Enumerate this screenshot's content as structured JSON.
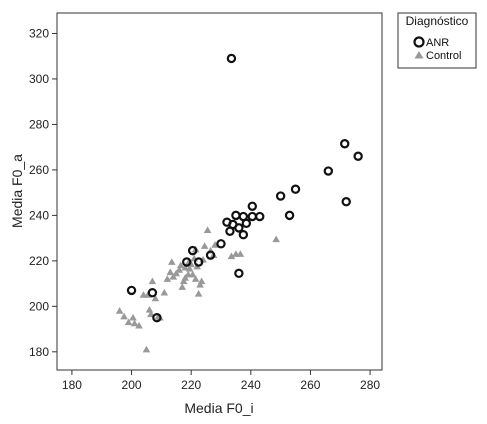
{
  "chart_data": {
    "type": "scatter",
    "xlabel": "Media F0_i",
    "ylabel": "Media F0_a",
    "xlim": [
      175,
      284
    ],
    "ylim": [
      172,
      329
    ],
    "xticks": [
      180,
      200,
      220,
      240,
      260,
      280
    ],
    "yticks": [
      180,
      200,
      220,
      240,
      260,
      280,
      300,
      320
    ],
    "grid": false,
    "legend": {
      "title": "Diagnóstico",
      "placement": "top-right outside",
      "entries": [
        {
          "label": "ANR",
          "marker": "circle"
        },
        {
          "label": "Control",
          "marker": "triangle"
        }
      ]
    },
    "series": [
      {
        "name": "ANR",
        "marker": "circle",
        "color": "#111111",
        "points": [
          [
            200,
            207
          ],
          [
            207,
            206
          ],
          [
            208.5,
            195
          ],
          [
            218.5,
            219.5
          ],
          [
            220.5,
            224.5
          ],
          [
            222.5,
            219.5
          ],
          [
            226.5,
            222.5
          ],
          [
            230,
            227.5
          ],
          [
            232,
            237
          ],
          [
            233,
            233
          ],
          [
            234,
            236
          ],
          [
            235,
            240
          ],
          [
            236,
            234.5
          ],
          [
            236,
            214.5
          ],
          [
            237.5,
            231.5
          ],
          [
            237.5,
            239.5
          ],
          [
            238.5,
            236.5
          ],
          [
            240.5,
            244
          ],
          [
            240.5,
            239.5
          ],
          [
            243,
            239.5
          ],
          [
            250,
            248.5
          ],
          [
            253,
            240
          ],
          [
            255,
            251.5
          ],
          [
            266,
            259.5
          ],
          [
            271.5,
            271.5
          ],
          [
            272,
            246
          ],
          [
            276,
            266
          ],
          [
            233.5,
            309
          ]
        ]
      },
      {
        "name": "Control",
        "marker": "triangle",
        "color": "#999999",
        "points": [
          [
            196,
            198
          ],
          [
            197.5,
            195.5
          ],
          [
            199,
            193
          ],
          [
            201,
            192.5
          ],
          [
            202.5,
            191.5
          ],
          [
            200.5,
            195
          ],
          [
            205.5,
            205
          ],
          [
            204,
            205
          ],
          [
            206,
            198.5
          ],
          [
            206.5,
            196.5
          ],
          [
            207,
            211
          ],
          [
            208,
            203.5
          ],
          [
            209,
            195.5
          ],
          [
            209.5,
            195
          ],
          [
            205,
            181
          ],
          [
            211,
            206
          ],
          [
            212,
            212
          ],
          [
            213,
            215
          ],
          [
            213.5,
            219.5
          ],
          [
            215,
            214.5
          ],
          [
            214,
            213
          ],
          [
            216,
            216
          ],
          [
            216.5,
            218
          ],
          [
            217,
            208.5
          ],
          [
            217.5,
            211
          ],
          [
            218,
            217
          ],
          [
            219,
            219
          ],
          [
            219.5,
            216.5
          ],
          [
            220,
            218.5
          ],
          [
            220.5,
            214
          ],
          [
            221,
            221
          ],
          [
            221.5,
            225
          ],
          [
            221.5,
            212
          ],
          [
            222,
            217.5
          ],
          [
            222.5,
            205.5
          ],
          [
            223,
            209.5
          ],
          [
            223.5,
            211
          ],
          [
            224,
            220.5
          ],
          [
            224.5,
            226.5
          ],
          [
            225.5,
            233.5
          ],
          [
            226.5,
            224.5
          ],
          [
            227.5,
            222.5
          ],
          [
            228,
            227
          ],
          [
            233.5,
            222
          ],
          [
            235,
            223
          ],
          [
            236.5,
            223
          ],
          [
            248.5,
            229.5
          ],
          [
            219,
            214
          ],
          [
            218,
            212.5
          ]
        ]
      }
    ]
  }
}
